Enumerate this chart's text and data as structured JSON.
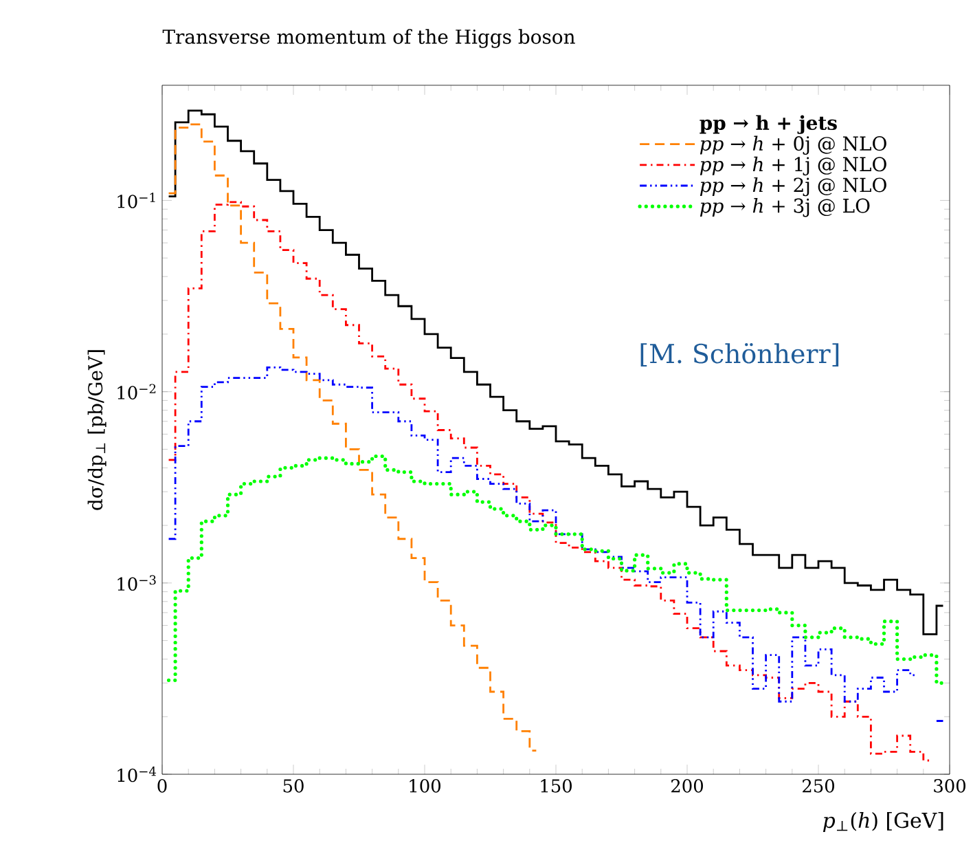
{
  "chart_data": {
    "type": "step",
    "title": "Transverse momentum of the Higgs boson",
    "xlabel": "*p*$_{⊥}$(*h*) [GeV]",
    "ylabel": "dσ/dp$_{⊥}$ [pb/GeV]",
    "legend_title": "pp → h + jets",
    "x": [
      2.5,
      7.5,
      12.5,
      17.5,
      22.5,
      27.5,
      32.5,
      37.5,
      42.5,
      47.5,
      52.5,
      57.5,
      62.5,
      67.5,
      72.5,
      77.5,
      82.5,
      87.5,
      92.5,
      97.5,
      102.5,
      107.5,
      112.5,
      117.5,
      122.5,
      127.5,
      132.5,
      137.5,
      142.5,
      147.5,
      152.5,
      157.5,
      162.5,
      167.5,
      172.5,
      177.5,
      182.5,
      187.5,
      192.5,
      197.5,
      202.5,
      207.5,
      212.5,
      217.5,
      222.5,
      227.5,
      232.5,
      237.5,
      242.5,
      247.5,
      252.5,
      257.5,
      262.5,
      267.5,
      272.5,
      277.5,
      282.5,
      287.5,
      292.5,
      297.5
    ],
    "series": [
      {
        "color": "#000000",
        "line_style": "solid",
        "values": [
          0.105,
          0.256,
          0.295,
          0.282,
          0.243,
          0.205,
          0.181,
          0.156,
          0.128,
          0.112,
          0.096,
          0.082,
          0.07,
          0.06,
          0.052,
          0.044,
          0.038,
          0.032,
          0.028,
          0.024,
          0.02,
          0.017,
          0.015,
          0.0127,
          0.0109,
          0.0094,
          0.008,
          0.007,
          0.0064,
          0.0066,
          0.0055,
          0.0053,
          0.0045,
          0.0041,
          0.0037,
          0.0032,
          0.0034,
          0.0031,
          0.0028,
          0.003,
          0.0025,
          0.002,
          0.0022,
          0.0019,
          0.0016,
          0.0014,
          0.0014,
          0.0012,
          0.0014,
          0.0012,
          0.0013,
          0.0012,
          0.001,
          0.00097,
          0.00092,
          0.00104,
          0.00092,
          0.00087,
          0.00054,
          0.00076
        ]
      },
      {
        "name": "*pp* → *h* + 0j @ NLO",
        "color": "#ff8000",
        "line_style": "dashed",
        "values": [
          0.109,
          0.24,
          0.25,
          0.203,
          0.135,
          0.094,
          0.06,
          0.042,
          0.029,
          0.0213,
          0.0151,
          0.0115,
          0.009,
          0.0068,
          0.005,
          0.0039,
          0.0029,
          0.0022,
          0.0017,
          0.00135,
          0.00101,
          0.00081,
          0.0006,
          0.00047,
          0.00036,
          0.00027,
          0.000195,
          0.000168,
          0.000133,
          null,
          null,
          null,
          null,
          null,
          null,
          null,
          null,
          null,
          null,
          null,
          null,
          null,
          null,
          null,
          null,
          null,
          null,
          null,
          null,
          null,
          null,
          null,
          null,
          null,
          null,
          null,
          null,
          null,
          null,
          null
        ]
      },
      {
        "name": "*pp* → *h* + 1j @ NLO",
        "color": "#ff0000",
        "line_style": "dashdot",
        "values": [
          0.0044,
          0.0127,
          0.0347,
          0.069,
          0.095,
          0.098,
          0.093,
          0.079,
          0.069,
          0.055,
          0.047,
          0.039,
          0.032,
          0.027,
          0.0223,
          0.0179,
          0.0153,
          0.0132,
          0.0109,
          0.0092,
          0.0079,
          0.0063,
          0.0057,
          0.0051,
          0.0041,
          0.0037,
          0.0033,
          0.0028,
          0.0023,
          0.00207,
          0.00162,
          0.00153,
          0.00145,
          0.0013,
          0.0012,
          0.00104,
          0.00097,
          0.00096,
          0.00081,
          0.00069,
          0.00058,
          0.00052,
          0.00044,
          0.00037,
          0.00035,
          0.00033,
          0.00032,
          0.00025,
          0.00028,
          0.0003,
          0.00027,
          0.0002,
          0.00024,
          0.0002,
          0.000128,
          0.000131,
          0.000159,
          0.000131,
          0.000118,
          null
        ]
      },
      {
        "name": "*pp* → *h* + 2j @ NLO",
        "color": "#0000ff",
        "line_style": "dashdotdot",
        "values": [
          0.0017,
          0.0052,
          0.007,
          0.0106,
          0.0112,
          0.0118,
          0.0118,
          0.0118,
          0.0134,
          0.013,
          0.0127,
          0.0124,
          0.0115,
          0.0109,
          0.0106,
          0.0105,
          0.0078,
          0.0078,
          0.007,
          0.0059,
          0.0056,
          0.0038,
          0.0045,
          0.0041,
          0.0035,
          0.0033,
          0.0031,
          0.0026,
          0.0021,
          0.0024,
          0.0018,
          0.0018,
          0.0015,
          0.00145,
          0.00137,
          0.0012,
          0.00115,
          0.00101,
          0.00107,
          0.00107,
          0.00079,
          0.00052,
          0.00071,
          0.00062,
          0.00052,
          0.00028,
          0.00042,
          0.00024,
          0.00052,
          0.00037,
          0.00045,
          0.00033,
          0.00024,
          0.00028,
          0.00032,
          0.00027,
          0.00035,
          0.00033,
          null,
          0.00019
        ]
      },
      {
        "name": "*pp* → *h* + 3j @ LO",
        "color": "#00ff00",
        "line_style": "dotted",
        "values": [
          0.00031,
          0.00091,
          0.00135,
          0.0021,
          0.00225,
          0.0029,
          0.0033,
          0.0034,
          0.0036,
          0.004,
          0.0041,
          0.0044,
          0.0045,
          0.0044,
          0.0042,
          0.0043,
          0.0046,
          0.0039,
          0.0038,
          0.0034,
          0.0033,
          0.0033,
          0.0029,
          0.003,
          0.00265,
          0.00244,
          0.00225,
          0.0021,
          0.0019,
          0.002,
          0.0018,
          0.0018,
          0.0015,
          0.00147,
          0.00134,
          0.00116,
          0.0014,
          0.00119,
          0.00113,
          0.00126,
          0.00113,
          0.00105,
          0.00104,
          0.00072,
          0.00072,
          0.00072,
          0.00073,
          0.0007,
          0.0006,
          0.00052,
          0.00055,
          0.00058,
          0.00052,
          0.00051,
          0.00048,
          0.00063,
          0.0004,
          0.00041,
          0.00042,
          0.0003
        ]
      }
    ],
    "xlim": [
      0,
      300
    ],
    "xticks": [
      0,
      50,
      100,
      150,
      200,
      250,
      300
    ],
    "ylim": [
      0.0001,
      0.4
    ],
    "log": "y",
    "yticks": [
      {
        "value": 0.0001,
        "label": "10$^{−4}$"
      },
      {
        "value": 0.001,
        "label": "10$^{−3}$"
      },
      {
        "value": 0.01,
        "label": "10$^{−2}$"
      },
      {
        "value": 0.1,
        "label": "10$^{−1}$"
      }
    ],
    "legend": "top right",
    "annotations": [
      "[M. Schönherr]"
    ]
  }
}
